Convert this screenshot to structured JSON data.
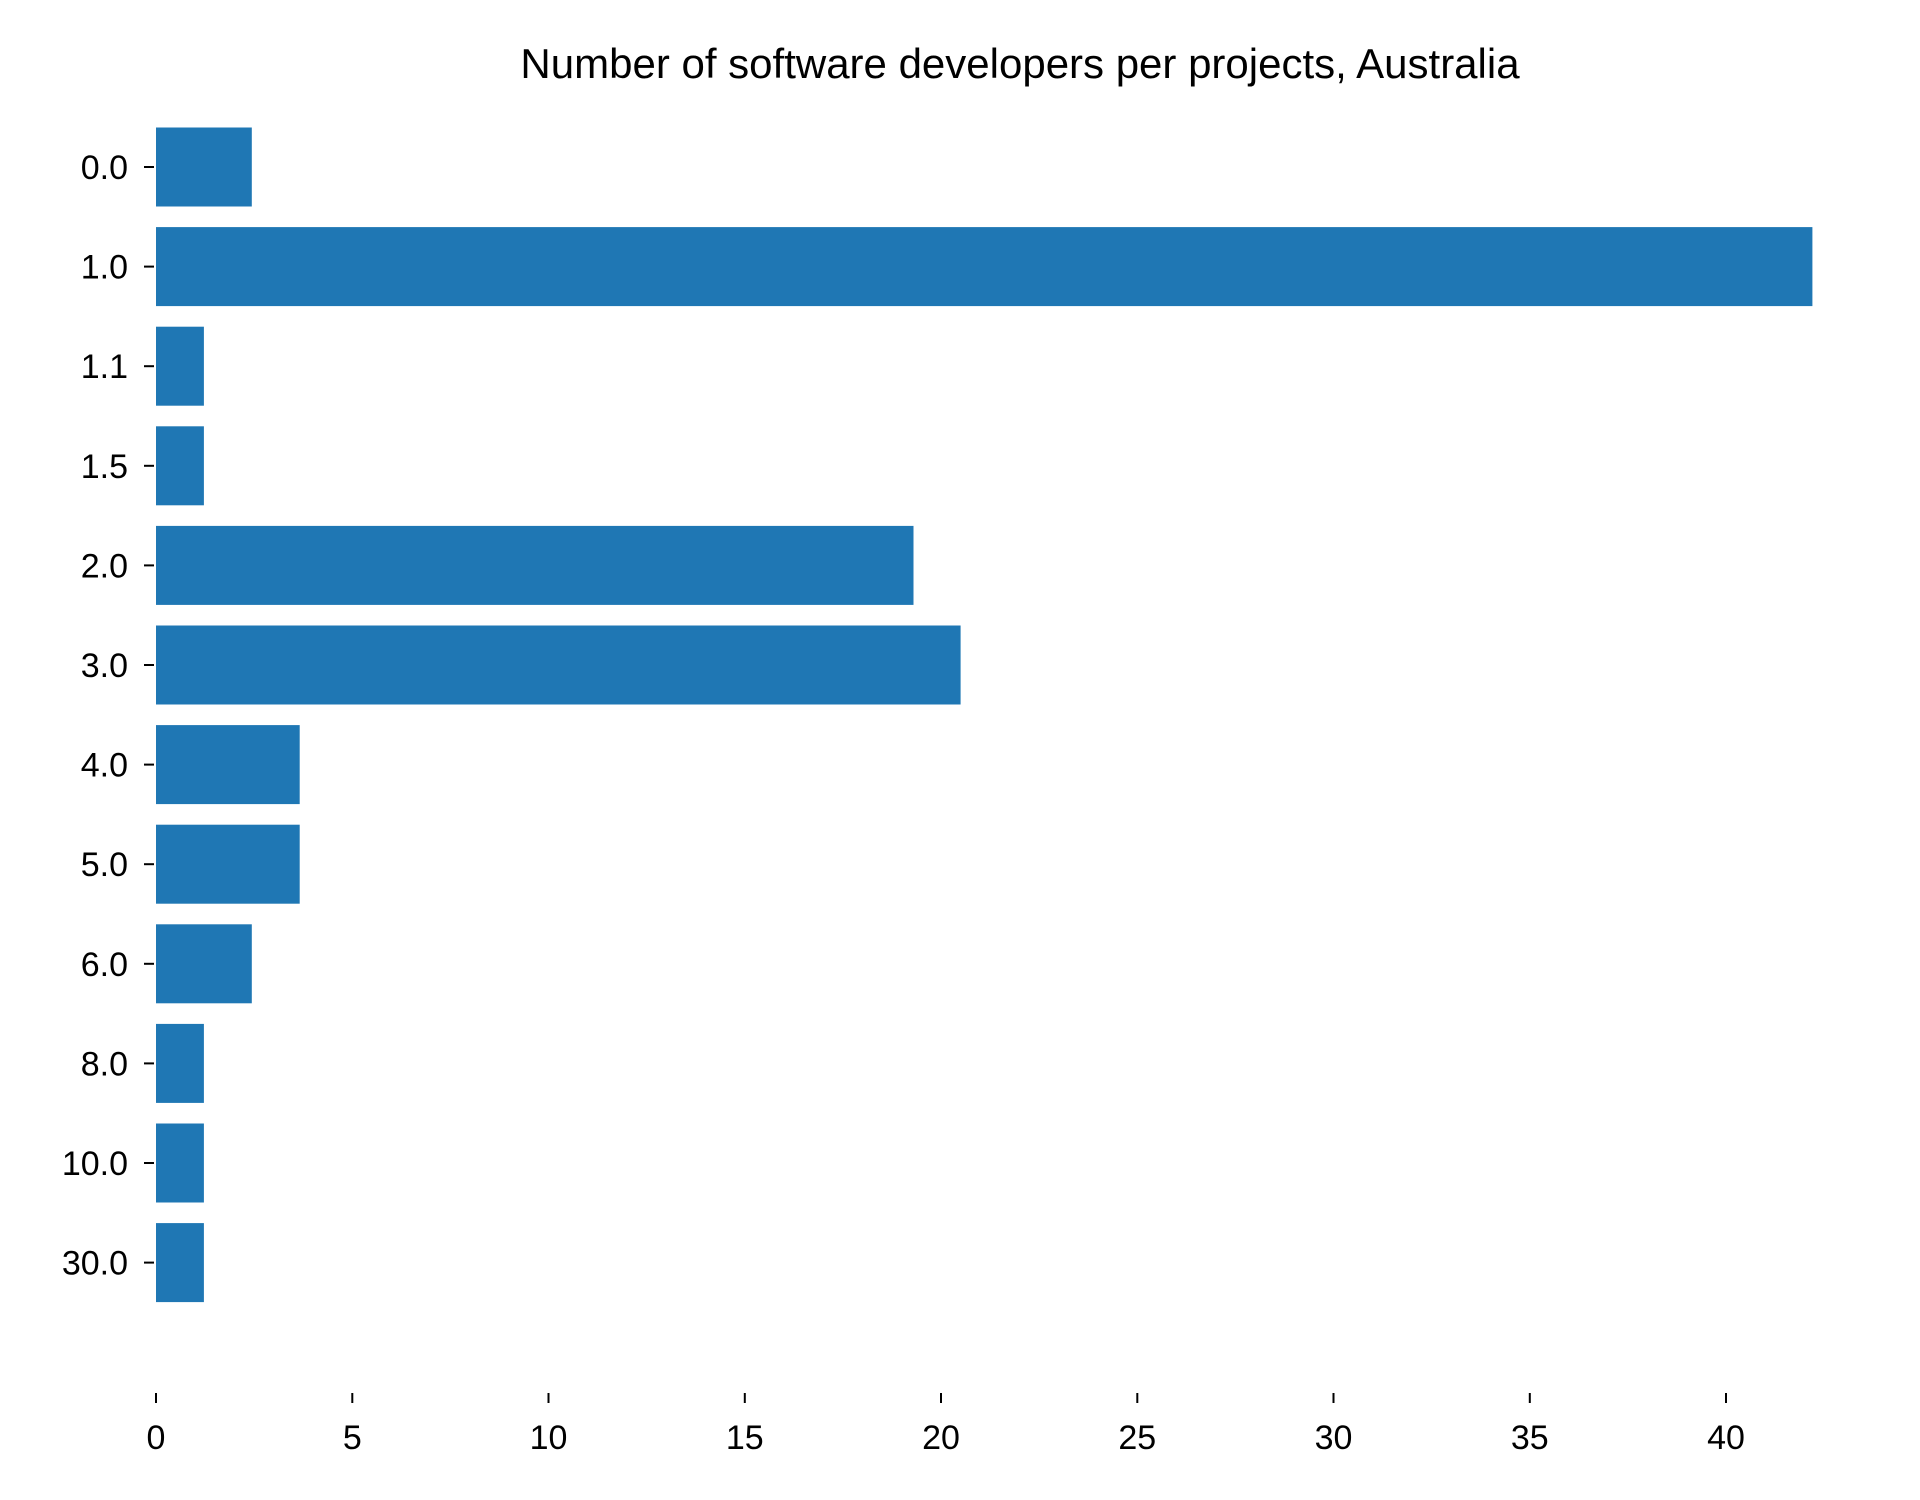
{
  "chart_data": {
    "type": "bar",
    "orientation": "horizontal",
    "title": "Number of software developers per projects, Australia",
    "xlabel": "",
    "ylabel": "",
    "categories": [
      "0.0",
      "1.0",
      "1.1",
      "1.5",
      "2.0",
      "3.0",
      "4.0",
      "5.0",
      "6.0",
      "8.0",
      "10.0",
      "30.0"
    ],
    "values": [
      2.44,
      42.2,
      1.22,
      1.22,
      19.3,
      20.5,
      3.66,
      3.66,
      2.44,
      1.22,
      1.22,
      1.22
    ],
    "xlim": [
      0,
      44.5
    ],
    "xticks": [
      0,
      5,
      10,
      15,
      20,
      25,
      30,
      35,
      40
    ],
    "xtick_labels": [
      "0",
      "5",
      "10",
      "15",
      "20",
      "25",
      "30",
      "35",
      "40"
    ],
    "bar_color": "#1f77b4",
    "grid": false,
    "legend": "none"
  }
}
